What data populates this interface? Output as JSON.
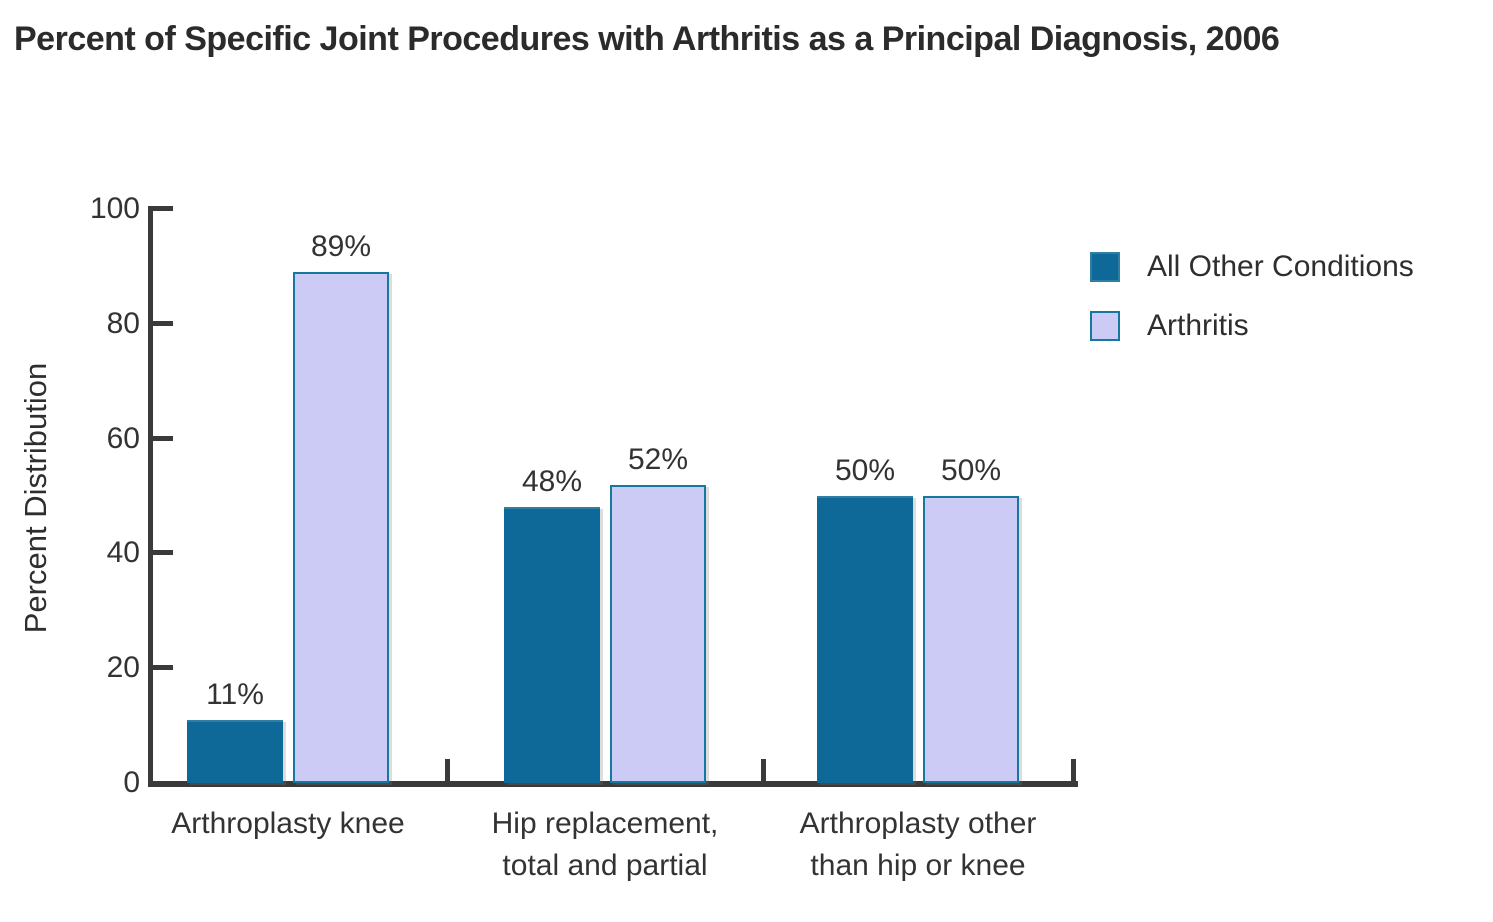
{
  "page": {
    "background": "#ffffff"
  },
  "chart_data": {
    "type": "bar",
    "title": "Percent of Specific Joint Procedures with Arthritis as a Principal Diagnosis, 2006",
    "ylabel": "Percent Distribution",
    "xlabel": "",
    "ylim": [
      0,
      100
    ],
    "yticks": [
      0,
      20,
      40,
      60,
      80,
      100
    ],
    "grid": false,
    "legend_position": "right",
    "axis_color": "#3a3a3a",
    "text_color": "#333333",
    "categories": [
      {
        "lines": [
          "Arthroplasty knee"
        ]
      },
      {
        "lines": [
          "Hip replacement,",
          "total and partial"
        ]
      },
      {
        "lines": [
          "Arthroplasty other",
          "than hip or knee"
        ]
      }
    ],
    "series": [
      {
        "name": "All Other Conditions",
        "color": "#0e6898",
        "border_color": "#2e7fa2",
        "values": [
          11,
          48,
          50
        ],
        "value_labels": [
          "11%",
          "48%",
          "50%"
        ]
      },
      {
        "name": "Arthritis",
        "color": "#cbcbf6",
        "border_color": "#15799f",
        "values": [
          89,
          52,
          50
        ],
        "value_labels": [
          "89%",
          "52%",
          "50%"
        ]
      }
    ]
  }
}
